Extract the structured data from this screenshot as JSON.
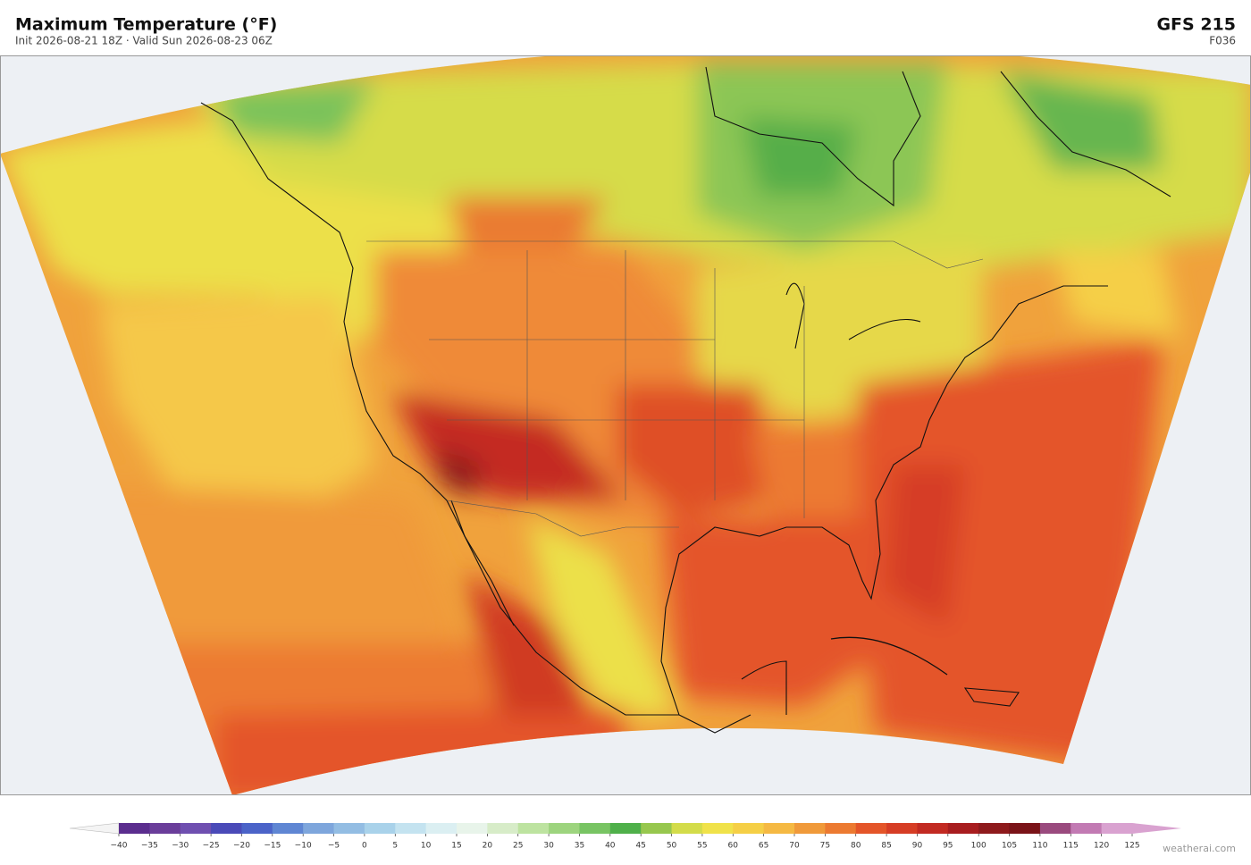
{
  "header": {
    "title": "Maximum Temperature  (°F)",
    "subtitle": "Init 2026-08-21 18Z  ·  Valid Sun 2026-08-23 06Z",
    "model": "GFS  215",
    "forecast_hour": "F036"
  },
  "colorbar": {
    "colors": [
      "#5b2d8e",
      "#6a3d9a",
      "#6f4fb0",
      "#4a4ab8",
      "#4b63c8",
      "#5f86d3",
      "#7ea6dc",
      "#93bde3",
      "#a9d2ea",
      "#c4e3f0",
      "#dbeff2",
      "#e8f4ea",
      "#d7ecc8",
      "#bde3a0",
      "#9dd47e",
      "#78c463",
      "#4fb04a",
      "#97c74e",
      "#d3dc4a",
      "#f0e24a",
      "#f5cf46",
      "#f5b943",
      "#f09a3a",
      "#ec7a31",
      "#e45529",
      "#d63d25",
      "#c22a22",
      "#a81d1f",
      "#8e1a1c",
      "#7a1318",
      "#9a4a7e",
      "#c27ab3",
      "#d9a2d0"
    ],
    "under_color": "#f4f4f4",
    "over_color": "#d9a2d0",
    "ticks": [
      {
        "value": -40,
        "label": "−40"
      },
      {
        "value": -35,
        "label": "−35"
      },
      {
        "value": -30,
        "label": "−30"
      },
      {
        "value": -25,
        "label": "−25"
      },
      {
        "value": -20,
        "label": "−20"
      },
      {
        "value": -15,
        "label": "−15"
      },
      {
        "value": -10,
        "label": "−10"
      },
      {
        "value": -5,
        "label": "−5"
      },
      0,
      5,
      10,
      15,
      20,
      25,
      30,
      35,
      40,
      45,
      50,
      55,
      60,
      65,
      70,
      75,
      80,
      85,
      90,
      95,
      100,
      105,
      110,
      115,
      120,
      125
    ]
  },
  "footer": {
    "credit": "weatherai.com"
  }
}
